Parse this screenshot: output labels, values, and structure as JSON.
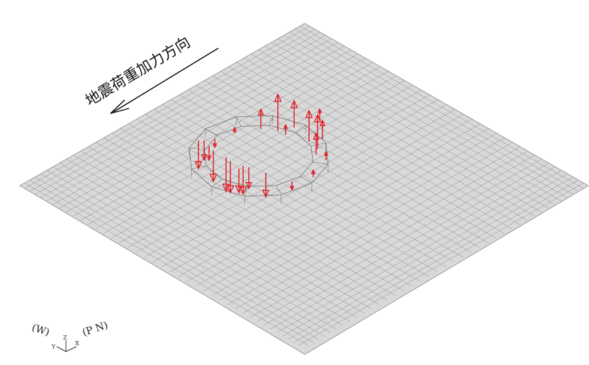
{
  "annotation": {
    "direction_label": "地震荷重加力方向"
  },
  "triad": {
    "left_label": "(W)",
    "right_label": "(P N)",
    "z_label": "Z",
    "x_label": "X",
    "y_label": "Y"
  },
  "colors": {
    "plate_fill": "#d9d9d9",
    "mesh_line": "#8a8a8a",
    "plate_edge": "#9a9a9a",
    "load_arrow": "#e0141e",
    "direction_arrow": "#000000"
  },
  "mesh": {
    "divisions": 40,
    "plate_shape": "square-isometric",
    "embedded_ring": true
  },
  "loads": {
    "direction_words": [
      "up",
      "down"
    ],
    "ring_arrows_count": 24
  }
}
